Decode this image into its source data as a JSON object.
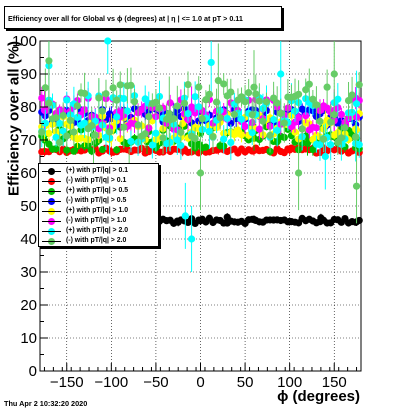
{
  "chart_data": {
    "type": "scatter",
    "title": "Efficiency over all for Global vs ϕ (degrees) at | η | <= 1.0 at pT > 0.11",
    "xlabel": "ϕ (degrees)",
    "ylabel": "Efficiency over all (%)",
    "xlim": [
      -180,
      180
    ],
    "ylim": [
      0,
      100
    ],
    "xticks": [
      -150,
      -100,
      -50,
      0,
      50,
      100,
      150
    ],
    "yticks": [
      0,
      10,
      20,
      30,
      40,
      50,
      60,
      70,
      80,
      90,
      100
    ],
    "grid": true,
    "legend_position": "left-middle",
    "series": [
      {
        "name": "(+) with pT/|q| > 0.1",
        "color": "#000000",
        "level": 45.5,
        "spread": 0.8,
        "err": 0.5,
        "points": [
          [
            -175,
            45.8
          ],
          [
            -130,
            45.4
          ],
          [
            -90,
            45.2
          ],
          [
            -60,
            45.6
          ],
          [
            -25,
            45.1
          ],
          [
            0,
            45.5
          ],
          [
            30,
            46.6
          ],
          [
            60,
            45.9
          ],
          [
            100,
            45.3
          ],
          [
            135,
            46.4
          ],
          [
            175,
            45.2
          ]
        ]
      },
      {
        "name": "(-) with pT/|q| > 0.1",
        "color": "#ff0000",
        "level": 66.8,
        "spread": 0.8,
        "err": 0.6,
        "points": [
          [
            -175,
            66.5
          ],
          [
            -140,
            67.0
          ],
          [
            -100,
            66.4
          ],
          [
            -60,
            67.2
          ],
          [
            -20,
            66.6
          ],
          [
            20,
            67.1
          ],
          [
            60,
            66.8
          ],
          [
            100,
            67.0
          ],
          [
            140,
            66.6
          ],
          [
            175,
            66.8
          ]
        ]
      },
      {
        "name": "(+) with pT/|q| > 0.5",
        "color": "#00bb00",
        "level": 70.5,
        "spread": 4.0,
        "err": 1.5,
        "points": [
          [
            -175,
            70.0
          ],
          [
            -120,
            71.5
          ],
          [
            -60,
            69.5
          ],
          [
            0,
            72.0
          ],
          [
            60,
            70.5
          ],
          [
            120,
            69.0
          ],
          [
            175,
            70.5
          ]
        ]
      },
      {
        "name": "(-) with pT/|q| > 0.5",
        "color": "#0000ff",
        "level": 77.0,
        "spread": 2.5,
        "err": 1.5,
        "points": [
          [
            -175,
            77.5
          ],
          [
            -100,
            76.5
          ],
          [
            -30,
            77.5
          ],
          [
            40,
            76.5
          ],
          [
            110,
            77.0
          ],
          [
            175,
            77.5
          ]
        ]
      },
      {
        "name": "(+) with pT/|q| > 1.0",
        "color": "#ffff00",
        "level": 74.0,
        "spread": 4.0,
        "err": 2.0,
        "points": [
          [
            -175,
            74.5
          ],
          [
            -100,
            73.0
          ],
          [
            -20,
            75.0
          ],
          [
            60,
            73.5
          ],
          [
            140,
            74.5
          ],
          [
            175,
            73.0
          ]
        ]
      },
      {
        "name": "(-) with pT/|q| > 1.0",
        "color": "#ff00ff",
        "level": 78.0,
        "spread": 5.0,
        "err": 2.5,
        "points": [
          [
            -175,
            79.0
          ],
          [
            -90,
            77.0
          ],
          [
            -10,
            80.0
          ],
          [
            70,
            76.5
          ],
          [
            150,
            79.0
          ],
          [
            175,
            77.0
          ]
        ]
      },
      {
        "name": "(+) with pT/|q| > 2.0",
        "color": "#00ffff",
        "level": 76.0,
        "spread": 8.0,
        "err": 4.0,
        "points": [
          [
            -170,
            92.5
          ],
          [
            -104,
            100
          ],
          [
            -17,
            47
          ],
          [
            -10,
            40
          ],
          [
            12,
            93.5
          ],
          [
            90,
            90
          ],
          [
            140,
            65
          ],
          [
            175,
            81
          ]
        ]
      },
      {
        "name": "(-) with pT/|q| > 2.0",
        "color": "#66cc66",
        "level": 78.0,
        "spread": 9.0,
        "err": 4.5,
        "points": [
          [
            -170,
            94
          ],
          [
            -120,
            60
          ],
          [
            -80,
            56
          ],
          [
            -35,
            78
          ],
          [
            0,
            60
          ],
          [
            20,
            88
          ],
          [
            60,
            86
          ],
          [
            110,
            60
          ],
          [
            150,
            90
          ],
          [
            175,
            56
          ]
        ]
      }
    ]
  },
  "footer": "Thu Apr  2 10:32:20 2020"
}
